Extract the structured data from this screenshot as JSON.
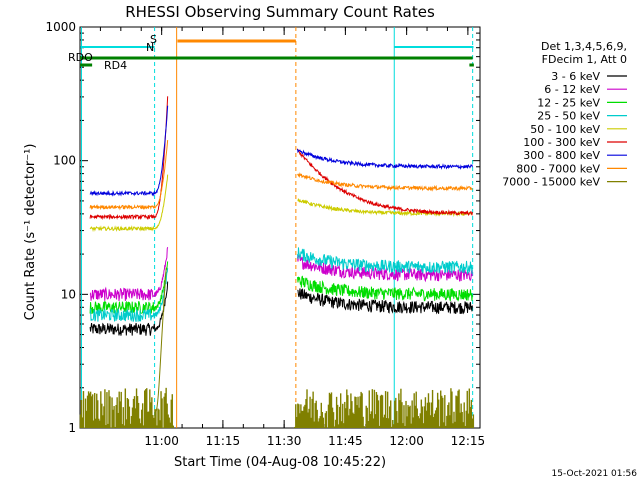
{
  "chart_data": {
    "type": "line",
    "title": "RHESSI Observing Summary Count Rates",
    "xlabel": "Start Time (04-Aug-08 10:45:22)",
    "ylabel": "Count Rate (s⁻¹ detector⁻¹)",
    "yscale": "log",
    "ylim": [
      1,
      1000
    ],
    "xlim_minutes": [
      -5.37,
      92.6
    ],
    "x_tick_labels": [
      "11:00",
      "11:15",
      "11:30",
      "11:45",
      "12:00",
      "12:15"
    ],
    "x_tick_minutes": [
      14.63,
      29.63,
      44.63,
      59.63,
      74.63,
      89.63
    ],
    "y_tick_labels": [
      "1",
      "10",
      "100",
      "1000"
    ],
    "y_tick_values": [
      1,
      10,
      100,
      1000
    ],
    "legend_header": [
      "Det 1,3,4,5,6,9,",
      "FDecim 1, Att 0"
    ],
    "legend_position": "right",
    "series": [
      {
        "name": "3 - 6 keV",
        "color": "#000000",
        "pre": 5.5,
        "post": 8,
        "peak": 0
      },
      {
        "name": "6 - 12 keV",
        "color": "#cc00cc",
        "pre": 10,
        "post": 14,
        "peak": 0
      },
      {
        "name": "12 - 25 keV",
        "color": "#00dd00",
        "pre": 8,
        "post": 10,
        "peak": 0
      },
      {
        "name": "25 - 50 keV",
        "color": "#00cccc",
        "pre": 7,
        "post": 16,
        "peak": 0
      },
      {
        "name": "50 - 100 keV",
        "color": "#cccc00",
        "pre": 31,
        "post": 40,
        "peak": 0
      },
      {
        "name": "100 - 300 keV",
        "color": "#dd0000",
        "pre": 38,
        "post": 40,
        "peak": 0
      },
      {
        "name": "300 - 800 keV",
        "color": "#0000dd",
        "pre": 57,
        "post": 90,
        "peak": 0
      },
      {
        "name": "800 - 7000 keV",
        "color": "#ff8800",
        "pre": 45,
        "post": 62,
        "peak": 0
      },
      {
        "name": "7000 - 15000 keV",
        "color": "#808000",
        "pre": 1.4,
        "post": 1.4,
        "peak": 0
      }
    ],
    "flag_bars": [
      {
        "name": "RDO",
        "color": "#008000"
      },
      {
        "name": "RD4",
        "color": "#008000"
      },
      {
        "name": "S",
        "color": "#ff8800"
      },
      {
        "name": "N",
        "color": "#00dddd"
      }
    ],
    "timestamp": "15-Oct-2021 01:56"
  }
}
